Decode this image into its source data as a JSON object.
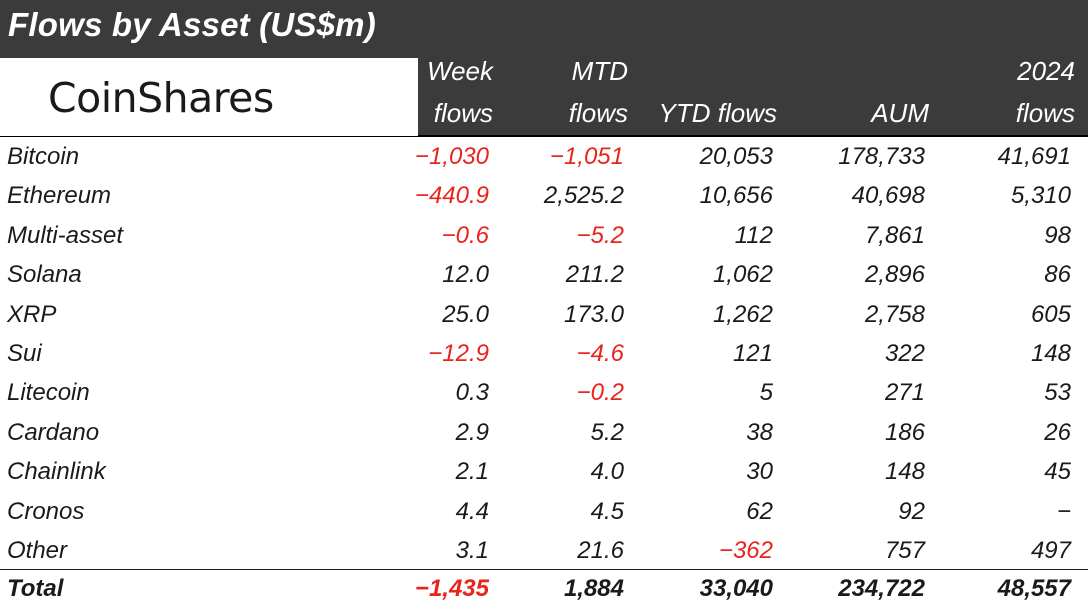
{
  "title": "Flows by Asset (US$m)",
  "logo": "CoinShares",
  "columns": [
    {
      "line1": "Week",
      "line2": "flows"
    },
    {
      "line1": "MTD",
      "line2": "flows"
    },
    {
      "line1": "",
      "line2": "YTD flows"
    },
    {
      "line1": "",
      "line2": "AUM"
    },
    {
      "line1": "2024",
      "line2": "flows"
    }
  ],
  "rows": [
    {
      "name": "Bitcoin",
      "values": [
        "-1,030",
        "-1,051",
        "20,053",
        "178,733",
        "41,691"
      ]
    },
    {
      "name": "Ethereum",
      "values": [
        "-440.9",
        "2,525.2",
        "10,656",
        "40,698",
        "5,310"
      ]
    },
    {
      "name": "Multi-asset",
      "values": [
        "-0.6",
        "-5.2",
        "112",
        "7,861",
        "98"
      ]
    },
    {
      "name": "Solana",
      "values": [
        "12.0",
        "211.2",
        "1,062",
        "2,896",
        "86"
      ]
    },
    {
      "name": "XRP",
      "values": [
        "25.0",
        "173.0",
        "1,262",
        "2,758",
        "605"
      ]
    },
    {
      "name": "Sui",
      "values": [
        "-12.9",
        "-4.6",
        "121",
        "322",
        "148"
      ]
    },
    {
      "name": "Litecoin",
      "values": [
        "0.3",
        "-0.2",
        "5",
        "271",
        "53"
      ]
    },
    {
      "name": "Cardano",
      "values": [
        "2.9",
        "5.2",
        "38",
        "186",
        "26"
      ]
    },
    {
      "name": "Chainlink",
      "values": [
        "2.1",
        "4.0",
        "30",
        "148",
        "45"
      ]
    },
    {
      "name": "Cronos",
      "values": [
        "4.4",
        "4.5",
        "62",
        "92",
        "-"
      ]
    },
    {
      "name": "Other",
      "values": [
        "3.1",
        "21.6",
        "-362",
        "757",
        "497"
      ]
    }
  ],
  "total": {
    "name": "Total",
    "values": [
      "-1,435",
      "1,884",
      "33,040",
      "234,722",
      "48,557"
    ]
  },
  "colors": {
    "header_bg": "#3b3b3b",
    "negative": "#e8241c",
    "text": "#1a1a1a"
  }
}
